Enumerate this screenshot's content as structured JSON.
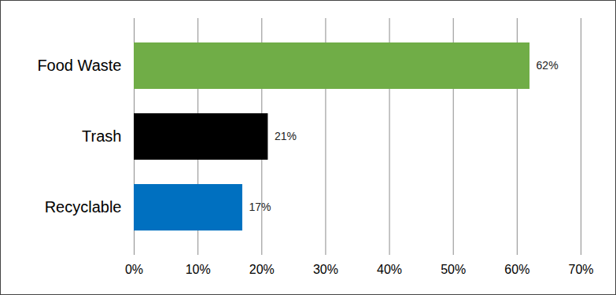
{
  "chart_data": {
    "type": "bar",
    "orientation": "horizontal",
    "categories": [
      "Food Waste",
      "Trash",
      "Recyclable"
    ],
    "values": [
      62,
      21,
      17
    ],
    "value_labels": [
      "62%",
      "21%",
      "17%"
    ],
    "colors": [
      "#70ad47",
      "#000000",
      "#0070c0"
    ],
    "xlim": [
      0,
      70
    ],
    "xticks": [
      {
        "value": 0,
        "label": "0%"
      },
      {
        "value": 10,
        "label": "10%"
      },
      {
        "value": 20,
        "label": "20%"
      },
      {
        "value": 30,
        "label": "30%"
      },
      {
        "value": 40,
        "label": "40%"
      },
      {
        "value": 50,
        "label": "50%"
      },
      {
        "value": 60,
        "label": "60%"
      },
      {
        "value": 70,
        "label": "70%"
      }
    ],
    "grid": true,
    "data_labels": true
  }
}
